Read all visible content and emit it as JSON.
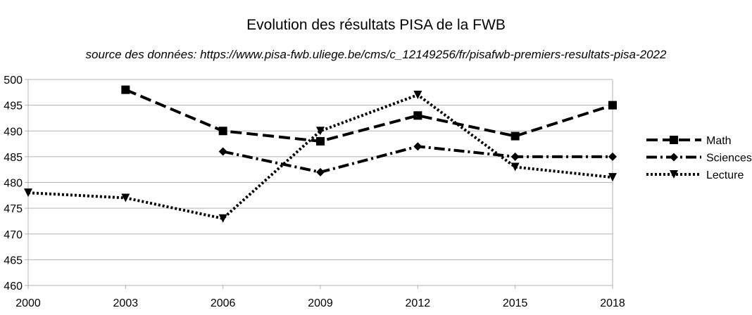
{
  "chart_data": {
    "type": "line",
    "title": "Evolution des résultats PISA de la FWB",
    "subtitle": "source des données: https://www.pisa-fwb.uliege.be/cms/c_12149256/fr/pisafwb-premiers-resultats-pisa-2022",
    "x": [
      2000,
      2003,
      2006,
      2009,
      2012,
      2015,
      2018
    ],
    "x_tick_labels": [
      "2000",
      "2003",
      "2006",
      "2009",
      "2012",
      "2015",
      "2018"
    ],
    "xlim": [
      2000,
      2018
    ],
    "ylim": [
      460,
      500
    ],
    "y_ticks": [
      460,
      465,
      470,
      475,
      480,
      485,
      490,
      495,
      500
    ],
    "y_tick_labels": [
      "460",
      "465",
      "470",
      "475",
      "480",
      "485",
      "490",
      "495",
      "500"
    ],
    "grid": true,
    "legend_position": "right",
    "series": [
      {
        "name": "Math",
        "marker": "square",
        "line_style": "dashed",
        "values": [
          null,
          498,
          490,
          488,
          493,
          489,
          495
        ]
      },
      {
        "name": "Sciences",
        "marker": "diamond",
        "line_style": "dash-dot",
        "values": [
          null,
          null,
          486,
          482,
          487,
          485,
          485
        ]
      },
      {
        "name": "Lecture",
        "marker": "triangle-down",
        "line_style": "dotted",
        "values": [
          478,
          477,
          473,
          490,
          497,
          483,
          481
        ]
      }
    ],
    "colors": {
      "line": "#000000",
      "grid": "#b3b3b3"
    }
  }
}
